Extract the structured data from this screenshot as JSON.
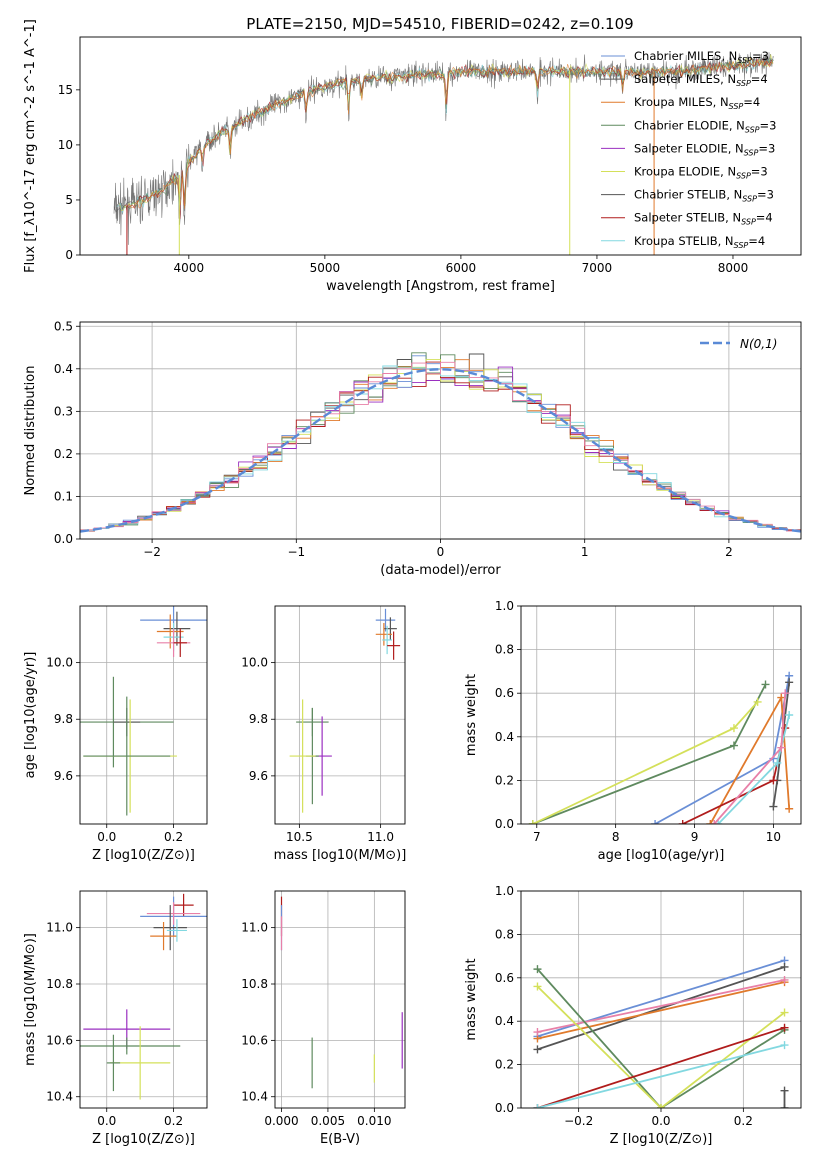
{
  "figure_title": "PLATE=2150, MJD=54510, FIBERID=0242, z=0.109",
  "colors": {
    "chabrier_miles": "#6a8fd6",
    "salpeter_miles": "#555555",
    "kroupa_miles": "#e07a2c",
    "chabrier_elodie": "#5f8a5f",
    "salpeter_elodie": "#9a2fc0",
    "kroupa_elodie": "#d4e05a",
    "chabrier_stelib": "#555555",
    "salpeter_stelib": "#b01c1c",
    "kroupa_stelib": "#82d8e0",
    "pink": "#e880a8",
    "normal_curve": "#5a8ad6",
    "grid": "#b0b0b0"
  },
  "chart_data": [
    {
      "id": "spectrum",
      "type": "line",
      "title": "PLATE=2150, MJD=54510, FIBERID=0242, z=0.109",
      "xlabel": "wavelength [Angstrom, rest frame]",
      "ylabel": "Flux [f_λ10^-17 erg cm^-2 s^-1 A^-1]",
      "xlim": [
        3200,
        8500
      ],
      "ylim": [
        0,
        19.8
      ],
      "xticks": [
        4000,
        5000,
        6000,
        7000,
        8000
      ],
      "yticks": [
        0,
        5,
        10,
        15
      ],
      "grid": false,
      "legend_position": "top-right",
      "legend": [
        {
          "name": "Chabrier MILES",
          "nssp": "3",
          "color": "#6a8fd6"
        },
        {
          "name": "Salpeter MILES",
          "nssp": "4",
          "color": "#555555"
        },
        {
          "name": "Kroupa MILES",
          "nssp": "4",
          "color": "#e07a2c"
        },
        {
          "name": "Chabrier ELODIE",
          "nssp": "3",
          "color": "#5f8a5f"
        },
        {
          "name": "Salpeter ELODIE",
          "nssp": "3",
          "color": "#9a2fc0"
        },
        {
          "name": "Kroupa ELODIE",
          "nssp": "3",
          "color": "#d4e05a"
        },
        {
          "name": "Chabrier STELIB",
          "nssp": "3",
          "color": "#555555"
        },
        {
          "name": "Salpeter STELIB",
          "nssp": "4",
          "color": "#b01c1c"
        },
        {
          "name": "Kroupa STELIB",
          "nssp": "4",
          "color": "#82d8e0"
        }
      ],
      "continuum": {
        "x": [
          3450,
          3600,
          3800,
          3950,
          4100,
          4300,
          4500,
          4700,
          4900,
          5100,
          5300,
          5600,
          6000,
          6400,
          6800,
          7200,
          7600,
          8000,
          8300
        ],
        "y": [
          4.2,
          4.6,
          5.8,
          7.5,
          10.0,
          11.5,
          12.8,
          14.0,
          15.0,
          15.6,
          16.0,
          16.3,
          16.6,
          16.7,
          16.7,
          16.6,
          16.7,
          17.2,
          17.6
        ]
      }
    },
    {
      "id": "residuals",
      "type": "line",
      "xlabel": "(data-model)/error",
      "ylabel": "Normed distribution",
      "xlim": [
        -2.5,
        2.5
      ],
      "ylim": [
        0,
        0.51
      ],
      "xticks": [
        -2,
        -1,
        0,
        1,
        2
      ],
      "yticks": [
        0.0,
        0.1,
        0.2,
        0.3,
        0.4,
        0.5
      ],
      "grid": true,
      "legend_position": "top-right",
      "curve_label": "N(0,1)",
      "bin_width": 0.1
    },
    {
      "id": "age_vs_Z",
      "type": "scatter",
      "xlabel": "Z [log10(Z/Z⊙)]",
      "ylabel": "age [log10(age/yr)]",
      "xlim": [
        -0.08,
        0.3
      ],
      "ylim": [
        9.43,
        10.2
      ],
      "xticks": [
        0.0,
        0.2
      ],
      "yticks": [
        9.6,
        9.8,
        10.0
      ],
      "grid": true,
      "points": [
        {
          "x": 0.2,
          "y": 10.15,
          "xerr": 0.1,
          "yerr": 0.05,
          "color": "#6a8fd6"
        },
        {
          "x": 0.21,
          "y": 10.12,
          "xerr": 0.04,
          "yerr": 0.06,
          "color": "#555555"
        },
        {
          "x": 0.19,
          "y": 10.11,
          "xerr": 0.04,
          "yerr": 0.06,
          "color": "#e07a2c"
        },
        {
          "x": 0.2,
          "y": 10.09,
          "xerr": 0.03,
          "yerr": 0.05,
          "color": "#82d8e0"
        },
        {
          "x": 0.2,
          "y": 10.07,
          "xerr": 0.05,
          "yerr": 0.05,
          "color": "#e880a8"
        },
        {
          "x": 0.22,
          "y": 10.07,
          "xerr": 0.02,
          "yerr": 0.05,
          "color": "#b01c1c"
        },
        {
          "x": 0.02,
          "y": 9.79,
          "xerr": 0.18,
          "yerr": 0.16,
          "color": "#5f8a5f"
        },
        {
          "x": 0.06,
          "y": 9.79,
          "xerr": 0.04,
          "yerr": 0.05,
          "color": "#555555"
        },
        {
          "x": 0.07,
          "y": 9.67,
          "xerr": 0.14,
          "yerr": 0.2,
          "color": "#d4e05a"
        },
        {
          "x": 0.06,
          "y": 9.67,
          "xerr": 0.13,
          "yerr": 0.21,
          "color": "#5f8a5f"
        }
      ]
    },
    {
      "id": "age_vs_mass",
      "type": "scatter",
      "xlabel": "mass [log10(M/M⊙)]",
      "ylabel": "",
      "xlim": [
        10.35,
        11.15
      ],
      "ylim": [
        9.43,
        10.2
      ],
      "xticks": [
        10.5,
        11.0
      ],
      "yticks": [
        9.6,
        9.8,
        10.0
      ],
      "grid": true,
      "points": [
        {
          "x": 11.03,
          "y": 10.15,
          "xerr": 0.06,
          "yerr": 0.04,
          "color": "#6a8fd6"
        },
        {
          "x": 11.06,
          "y": 10.12,
          "xerr": 0.04,
          "yerr": 0.04,
          "color": "#555555"
        },
        {
          "x": 11.02,
          "y": 10.1,
          "xerr": 0.05,
          "yerr": 0.04,
          "color": "#e07a2c"
        },
        {
          "x": 11.04,
          "y": 10.08,
          "xerr": 0.03,
          "yerr": 0.05,
          "color": "#82d8e0"
        },
        {
          "x": 11.08,
          "y": 10.06,
          "xerr": 0.04,
          "yerr": 0.05,
          "color": "#b01c1c"
        },
        {
          "x": 10.58,
          "y": 9.79,
          "xerr": 0.1,
          "yerr": 0.05,
          "color": "#5f8a5f"
        },
        {
          "x": 10.64,
          "y": 9.67,
          "xerr": 0.06,
          "yerr": 0.14,
          "color": "#9a2fc0"
        },
        {
          "x": 10.58,
          "y": 9.67,
          "xerr": 0.04,
          "yerr": 0.17,
          "color": "#5f8a5f"
        },
        {
          "x": 10.52,
          "y": 9.67,
          "xerr": 0.08,
          "yerr": 0.2,
          "color": "#d4e05a"
        }
      ]
    },
    {
      "id": "weight_vs_age",
      "type": "line",
      "xlabel": "age [log10(age/yr)]",
      "ylabel": "mass weight",
      "xlim": [
        6.8,
        10.35
      ],
      "ylim": [
        0,
        1.0
      ],
      "xticks": [
        7,
        8,
        9,
        10
      ],
      "yticks": [
        0.0,
        0.2,
        0.4,
        0.6,
        0.8,
        1.0
      ],
      "grid": true,
      "series": [
        {
          "color": "#6a8fd6",
          "x": [
            8.5,
            10.0,
            10.2
          ],
          "y": [
            0.0,
            0.3,
            0.68
          ]
        },
        {
          "color": "#555555",
          "x": [
            10.0,
            10.05,
            10.2
          ],
          "y": [
            0.08,
            0.2,
            0.65
          ]
        },
        {
          "color": "#e07a2c",
          "x": [
            9.2,
            10.1,
            10.2
          ],
          "y": [
            0.0,
            0.58,
            0.07
          ]
        },
        {
          "color": "#5f8a5f",
          "x": [
            6.95,
            9.5,
            9.9
          ],
          "y": [
            0.0,
            0.36,
            0.64
          ]
        },
        {
          "color": "#d4e05a",
          "x": [
            6.95,
            9.5,
            9.8
          ],
          "y": [
            0.0,
            0.44,
            0.56
          ]
        },
        {
          "color": "#b01c1c",
          "x": [
            8.85,
            10.0,
            10.15
          ],
          "y": [
            0.0,
            0.2,
            0.44
          ]
        },
        {
          "color": "#82d8e0",
          "x": [
            9.3,
            10.05,
            10.2
          ],
          "y": [
            0.0,
            0.28,
            0.5
          ]
        },
        {
          "color": "#e880a8",
          "x": [
            9.25,
            10.1,
            10.15
          ],
          "y": [
            0.0,
            0.35,
            0.6
          ]
        }
      ]
    },
    {
      "id": "mass_vs_Z",
      "type": "scatter",
      "xlabel": "Z [log10(Z/Z⊙)]",
      "ylabel": "mass [log10(M/M⊙)]",
      "xlim": [
        -0.08,
        0.3
      ],
      "ylim": [
        10.36,
        11.13
      ],
      "xticks": [
        0.0,
        0.2
      ],
      "yticks": [
        10.4,
        10.6,
        10.8,
        11.0
      ],
      "grid": true,
      "points": [
        {
          "x": 0.23,
          "y": 11.08,
          "xerr": 0.03,
          "yerr": 0.04,
          "color": "#b01c1c"
        },
        {
          "x": 0.2,
          "y": 11.04,
          "xerr": 0.1,
          "yerr": 0.07,
          "color": "#6a8fd6"
        },
        {
          "x": 0.2,
          "y": 11.05,
          "xerr": 0.08,
          "yerr": 0.04,
          "color": "#e880a8"
        },
        {
          "x": 0.19,
          "y": 11.0,
          "xerr": 0.05,
          "yerr": 0.08,
          "color": "#555555"
        },
        {
          "x": 0.17,
          "y": 10.97,
          "xerr": 0.04,
          "yerr": 0.05,
          "color": "#e07a2c"
        },
        {
          "x": 0.21,
          "y": 10.99,
          "xerr": 0.03,
          "yerr": 0.04,
          "color": "#82d8e0"
        },
        {
          "x": 0.06,
          "y": 10.64,
          "xerr": 0.13,
          "yerr": 0.07,
          "color": "#9a2fc0"
        },
        {
          "x": 0.06,
          "y": 10.58,
          "xerr": 0.16,
          "yerr": 0.03,
          "color": "#5f8a5f"
        },
        {
          "x": 0.1,
          "y": 10.52,
          "xerr": 0.09,
          "yerr": 0.13,
          "color": "#d4e05a"
        },
        {
          "x": 0.02,
          "y": 10.52,
          "xerr": 0.02,
          "yerr": 0.1,
          "color": "#5f8a5f"
        }
      ]
    },
    {
      "id": "mass_vs_EBV",
      "type": "scatter",
      "xlabel": "E(B-V)",
      "ylabel": "",
      "xlim": [
        -0.0007,
        0.0133
      ],
      "ylim": [
        10.36,
        11.13
      ],
      "xticks": [
        0.0,
        0.005,
        0.01
      ],
      "xticklabels": [
        "0.000",
        "0.005",
        "0.010"
      ],
      "yticks": [
        10.4,
        10.6,
        10.8,
        11.0
      ],
      "grid": true,
      "points": [
        {
          "x": 0.0,
          "y": 11.04,
          "xerr": 0.0,
          "yerr": 0.07,
          "color": "#b01c1c"
        },
        {
          "x": 0.0,
          "y": 11.0,
          "xerr": 0.0,
          "yerr": 0.08,
          "color": "#6a8fd6"
        },
        {
          "x": 0.0,
          "y": 10.98,
          "xerr": 0.0,
          "yerr": 0.06,
          "color": "#e880a8"
        },
        {
          "x": 0.0033,
          "y": 10.52,
          "xerr": 0.0,
          "yerr": 0.09,
          "color": "#5f8a5f"
        },
        {
          "x": 0.01,
          "y": 10.5,
          "xerr": 0.0,
          "yerr": 0.05,
          "color": "#d4e05a"
        },
        {
          "x": 0.013,
          "y": 10.6,
          "xerr": 0.0,
          "yerr": 0.1,
          "color": "#9a2fc0"
        }
      ]
    },
    {
      "id": "weight_vs_Z",
      "type": "line",
      "xlabel": "Z [log10(Z/Z⊙)]",
      "ylabel": "mass weight",
      "xlim": [
        -0.34,
        0.34
      ],
      "ylim": [
        0,
        1.0
      ],
      "xticks": [
        -0.2,
        0.0,
        0.2
      ],
      "yticks": [
        0.0,
        0.2,
        0.4,
        0.6,
        0.8,
        1.0
      ],
      "grid": true,
      "series": [
        {
          "color": "#6a8fd6",
          "x": [
            -0.3,
            0.3
          ],
          "y": [
            0.33,
            0.68
          ]
        },
        {
          "color": "#555555",
          "x": [
            -0.3,
            0.3
          ],
          "y": [
            0.27,
            0.65
          ]
        },
        {
          "color": "#e07a2c",
          "x": [
            -0.3,
            0.3
          ],
          "y": [
            0.32,
            0.58
          ]
        },
        {
          "color": "#e880a8",
          "x": [
            -0.3,
            0.3
          ],
          "y": [
            0.35,
            0.59
          ]
        },
        {
          "color": "#5f8a5f",
          "x": [
            -0.3,
            0.0,
            0.3
          ],
          "y": [
            0.64,
            0.0,
            0.36
          ]
        },
        {
          "color": "#d4e05a",
          "x": [
            -0.3,
            0.0,
            0.3
          ],
          "y": [
            0.56,
            0.0,
            0.44
          ]
        },
        {
          "color": "#b01c1c",
          "x": [
            -0.3,
            0.3
          ],
          "y": [
            0.0,
            0.37
          ]
        },
        {
          "color": "#82d8e0",
          "x": [
            -0.3,
            0.3
          ],
          "y": [
            0.0,
            0.29
          ]
        },
        {
          "color": "#555555",
          "x": [
            0.3,
            0.3
          ],
          "y": [
            0.0,
            0.08
          ]
        }
      ]
    }
  ]
}
